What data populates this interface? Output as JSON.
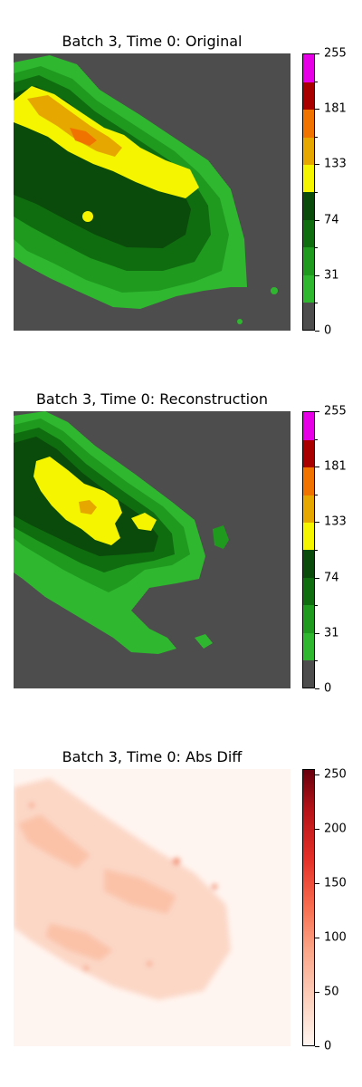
{
  "chart_data": [
    {
      "type": "heatmap",
      "title": "Batch 3, Time 0: Original",
      "colorbar": {
        "range": [
          0,
          255
        ],
        "tick_labels": [
          "0",
          "31",
          "74",
          "133",
          "181",
          "255"
        ],
        "bins": [
          {
            "color": "#4d4d4d"
          },
          {
            "color": "#2fb72f"
          },
          {
            "color": "#1f9a1f"
          },
          {
            "color": "#0f6d0f"
          },
          {
            "color": "#0a4a0a"
          },
          {
            "color": "#f5f500"
          },
          {
            "color": "#e6a800"
          },
          {
            "color": "#f07300"
          },
          {
            "color": "#a80000"
          },
          {
            "color": "#e600e6"
          }
        ]
      }
    },
    {
      "type": "heatmap",
      "title": "Batch 3, Time 0: Reconstruction",
      "colorbar": {
        "range": [
          0,
          255
        ],
        "tick_labels": [
          "0",
          "31",
          "74",
          "133",
          "181",
          "255"
        ],
        "bins": [
          {
            "color": "#4d4d4d"
          },
          {
            "color": "#2fb72f"
          },
          {
            "color": "#1f9a1f"
          },
          {
            "color": "#0f6d0f"
          },
          {
            "color": "#0a4a0a"
          },
          {
            "color": "#f5f500"
          },
          {
            "color": "#e6a800"
          },
          {
            "color": "#f07300"
          },
          {
            "color": "#a80000"
          },
          {
            "color": "#e600e6"
          }
        ]
      }
    },
    {
      "type": "heatmap",
      "title": "Batch 3, Time 0: Abs Diff",
      "colorbar": {
        "range": [
          0,
          255
        ],
        "colormap": "Reds",
        "tick_labels": [
          "0",
          "50",
          "100",
          "150",
          "200",
          "250"
        ],
        "tick_values": [
          0,
          50,
          100,
          150,
          200,
          250
        ]
      }
    }
  ]
}
